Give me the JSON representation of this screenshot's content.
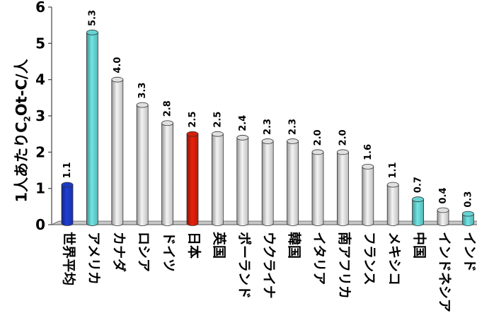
{
  "chart_data": {
    "type": "bar",
    "ylabel": {
      "before": "1人あたりC",
      "sub": "2",
      "after": "Ot-C/人"
    },
    "ylim": [
      0,
      6
    ],
    "yticks": [
      "0",
      "1",
      "2",
      "3",
      "4",
      "5",
      "6"
    ],
    "categories": [
      "世界平均",
      "アメリカ",
      "カナダ",
      "ロシア",
      "ドイツ",
      "日本",
      "英国",
      "ポーランド",
      "ウクライナ",
      "韓国",
      "イタリア",
      "南アフリカ",
      "フランス",
      "メキシコ",
      "中国",
      "インドネシア",
      "インド"
    ],
    "values": [
      1.1,
      5.3,
      4.0,
      3.3,
      2.8,
      2.5,
      2.5,
      2.4,
      2.3,
      2.3,
      2.0,
      2.0,
      1.6,
      1.1,
      0.7,
      0.4,
      0.3
    ],
    "value_labels": [
      "1.1",
      "5.3",
      "4.0",
      "3.3",
      "2.8",
      "2.5",
      "2.5",
      "2.4",
      "2.3",
      "2.3",
      "2.0",
      "2.0",
      "1.6",
      "1.1",
      "0.7",
      "0.4",
      "0.3"
    ],
    "bar_colors": [
      "#1f3fd6",
      "#6fe6e6",
      "#f4f4f4",
      "#f4f4f4",
      "#f4f4f4",
      "#e8220c",
      "#f4f4f4",
      "#f4f4f4",
      "#f4f4f4",
      "#f4f4f4",
      "#f4f4f4",
      "#f4f4f4",
      "#f4f4f4",
      "#f4f4f4",
      "#6fe6e6",
      "#f4f4f4",
      "#6fe6e6"
    ],
    "grid": false,
    "legend": "none"
  }
}
